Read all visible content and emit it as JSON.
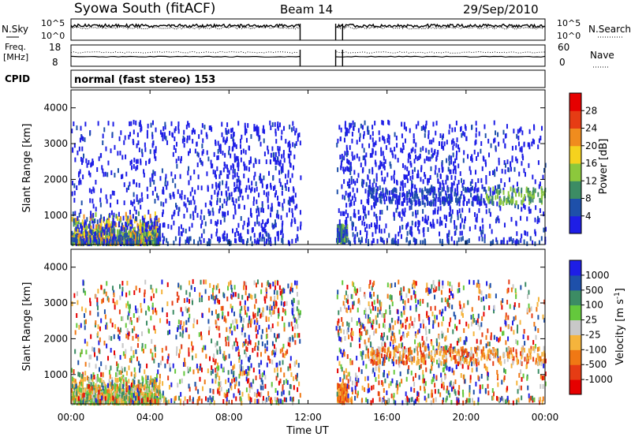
{
  "header": {
    "title": "Syowa South (fitACF)",
    "beam": "Beam 14",
    "date": "29/Sep/2010",
    "cpid_label": "CPID",
    "cpid_value": "normal (fast stereo) 153"
  },
  "noise_panel": {
    "left_label": "N.Sky",
    "right_label": "N.Search",
    "left_ticks": [
      "10^5",
      "10^0"
    ],
    "right_ticks": [
      "10^5",
      "10^0"
    ]
  },
  "freq_panel": {
    "left_label_1": "Freq.",
    "left_label_2": "[MHz]",
    "right_label": "Nave",
    "left_ticks": [
      "18",
      "8"
    ],
    "right_ticks": [
      "60",
      "0"
    ]
  },
  "colors": {
    "power": [
      "#1e1ee6",
      "#1e50aa",
      "#3c8c64",
      "#8cc83c",
      "#f5d21e",
      "#f08c1e",
      "#e63c14",
      "#e60000"
    ],
    "velocity": [
      "#e60000",
      "#e63c14",
      "#f07814",
      "#f5b43c",
      "#c8c8c8",
      "#64c83c",
      "#3c8c64",
      "#1e50aa",
      "#1e1ee6"
    ]
  },
  "chart_data": [
    {
      "type": "heatmap",
      "name": "power",
      "ylabel": "Slant Range [km]",
      "yticks": [
        "1000",
        "2000",
        "3000",
        "4000"
      ],
      "yvalues": [
        1000,
        2000,
        3000,
        4000
      ],
      "ylim": [
        180,
        4500
      ],
      "xlim_hours": [
        0,
        24
      ],
      "colorbar_label": "Power [dB]",
      "colorbar_ticks": [
        "4",
        "8",
        "12",
        "16",
        "20",
        "24",
        "28"
      ],
      "data_gap_hours": [
        11.6,
        13.4
      ]
    },
    {
      "type": "heatmap",
      "name": "velocity",
      "ylabel": "Slant Range [km]",
      "yticks": [
        "1000",
        "2000",
        "3000",
        "4000"
      ],
      "yvalues": [
        1000,
        2000,
        3000,
        4000
      ],
      "ylim": [
        180,
        4500
      ],
      "xlim_hours": [
        0,
        24
      ],
      "colorbar_label": "Velocity [m s^-1]",
      "colorbar_ticks": [
        "-1000",
        "-500",
        "-100",
        "-25",
        "25",
        "100",
        "500",
        "1000"
      ],
      "data_gap_hours": [
        11.6,
        13.4
      ]
    }
  ],
  "x_axis": {
    "label": "Time UT",
    "ticks": [
      "00:00",
      "04:00",
      "08:00",
      "12:00",
      "16:00",
      "20:00",
      "00:00"
    ],
    "hours": [
      0,
      4,
      8,
      12,
      16,
      20,
      24
    ]
  }
}
